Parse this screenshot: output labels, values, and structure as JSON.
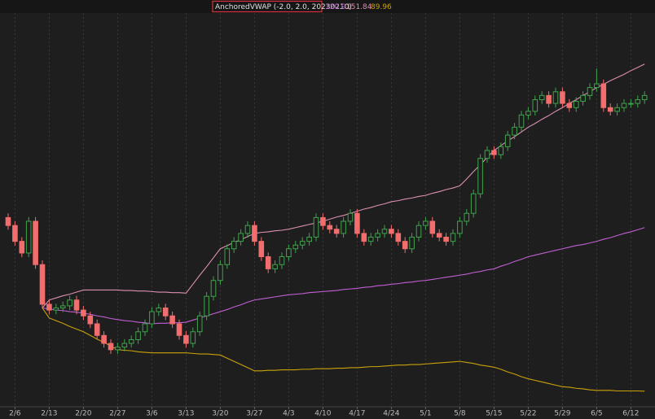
{
  "chart_data": {
    "type": "candlestick",
    "study": "AnchoredVWAP (-2.0, 2.0, 20230210)",
    "categories": [
      null,
      "2/6",
      null,
      null,
      null,
      null,
      "2/13",
      null,
      null,
      null,
      null,
      "2/20",
      null,
      null,
      null,
      null,
      "2/27",
      null,
      null,
      null,
      null,
      "3/6",
      null,
      null,
      null,
      null,
      "3/13",
      null,
      null,
      null,
      null,
      "3/20",
      null,
      null,
      null,
      null,
      "3/27",
      null,
      null,
      null,
      null,
      "4/3",
      null,
      null,
      null,
      null,
      "4/10",
      null,
      null,
      null,
      null,
      "4/17",
      null,
      null,
      null,
      null,
      "4/24",
      null,
      null,
      null,
      null,
      "5/1",
      null,
      null,
      null,
      null,
      "5/8",
      null,
      null,
      null,
      null,
      "5/15",
      null,
      null,
      null,
      null,
      "5/22",
      null,
      null,
      null,
      null,
      "5/29",
      null,
      null,
      null,
      null,
      "6/5",
      null,
      null,
      null,
      null,
      "6/12",
      null,
      null
    ],
    "open": [
      122.8,
      121.3,
      118.3,
      116.1,
      122.1,
      113.9,
      106.4,
      105.3,
      105.7,
      106.1,
      107.2,
      105.3,
      104.2,
      102.7,
      100.5,
      99.0,
      97.8,
      98.3,
      99.0,
      99.7,
      101.2,
      102.7,
      105.0,
      105.7,
      104.2,
      102.7,
      100.5,
      99.0,
      101.2,
      104.2,
      107.9,
      110.9,
      113.9,
      116.9,
      118.3,
      119.8,
      121.3,
      118.3,
      115.4,
      113.1,
      113.9,
      115.4,
      116.9,
      117.6,
      118.3,
      119.1,
      122.8,
      121.3,
      120.6,
      119.8,
      122.1,
      123.6,
      119.8,
      118.3,
      119.1,
      119.8,
      120.6,
      119.8,
      118.3,
      116.9,
      119.1,
      121.3,
      122.1,
      119.8,
      119.1,
      118.3,
      119.8,
      122.1,
      123.6,
      127.3,
      134.0,
      135.5,
      134.7,
      136.2,
      138.4,
      139.9,
      142.2,
      142.9,
      145.1,
      145.9,
      144.4,
      146.6,
      144.4,
      143.6,
      144.8,
      145.9,
      147.4,
      148.1,
      143.6,
      142.9,
      143.6,
      144.4,
      144.4,
      145.1
    ],
    "high": [
      123.6,
      122.1,
      119.1,
      122.9,
      122.9,
      114.7,
      107.2,
      106.5,
      106.9,
      108.0,
      108.0,
      106.1,
      105.0,
      103.5,
      101.3,
      99.8,
      99.1,
      99.8,
      100.5,
      102.0,
      103.5,
      105.8,
      106.5,
      106.5,
      105.0,
      103.5,
      101.3,
      102.0,
      105.0,
      108.7,
      111.7,
      114.7,
      117.7,
      119.1,
      120.6,
      122.1,
      122.1,
      119.1,
      116.2,
      114.7,
      116.2,
      117.7,
      118.4,
      119.1,
      119.9,
      123.6,
      123.6,
      122.1,
      121.4,
      122.9,
      124.4,
      124.4,
      120.6,
      119.9,
      120.6,
      121.4,
      121.4,
      120.6,
      119.1,
      119.9,
      122.1,
      122.9,
      122.9,
      120.6,
      119.9,
      120.6,
      122.9,
      124.4,
      128.1,
      134.8,
      136.3,
      136.3,
      137.0,
      139.2,
      140.7,
      143.0,
      143.7,
      145.9,
      146.7,
      146.7,
      147.4,
      147.4,
      145.2,
      145.6,
      146.7,
      148.2,
      151.0,
      148.9,
      144.4,
      144.4,
      145.2,
      145.2,
      145.9,
      146.7
    ],
    "low": [
      120.5,
      117.5,
      115.3,
      115.3,
      113.1,
      105.6,
      104.5,
      104.5,
      104.9,
      105.3,
      104.5,
      103.4,
      101.9,
      99.7,
      98.2,
      97.0,
      97.0,
      97.5,
      98.2,
      98.9,
      100.4,
      101.9,
      104.2,
      103.4,
      101.9,
      99.7,
      98.2,
      98.2,
      100.4,
      103.4,
      107.1,
      110.1,
      113.1,
      116.1,
      117.5,
      119.0,
      117.5,
      114.6,
      112.3,
      112.3,
      113.1,
      114.6,
      116.1,
      116.8,
      117.5,
      118.3,
      120.5,
      119.8,
      119.0,
      119.0,
      121.3,
      119.0,
      117.5,
      117.5,
      118.3,
      119.0,
      119.0,
      117.5,
      116.1,
      116.1,
      118.3,
      120.5,
      119.0,
      118.3,
      117.5,
      117.5,
      119.0,
      121.3,
      122.8,
      126.5,
      133.2,
      133.9,
      133.9,
      135.4,
      137.6,
      139.1,
      141.4,
      142.1,
      144.3,
      143.6,
      143.6,
      143.6,
      142.8,
      142.8,
      144.0,
      145.1,
      146.6,
      142.8,
      142.1,
      142.1,
      142.8,
      143.6,
      143.6,
      144.3
    ],
    "close": [
      121.3,
      118.3,
      116.1,
      122.1,
      113.9,
      106.4,
      105.3,
      105.7,
      106.1,
      107.2,
      105.3,
      104.2,
      102.7,
      100.5,
      99.0,
      97.8,
      98.3,
      99.0,
      99.7,
      101.2,
      102.7,
      105.0,
      105.7,
      104.2,
      102.7,
      100.5,
      99.0,
      101.2,
      104.2,
      107.9,
      110.9,
      113.9,
      116.9,
      118.3,
      119.8,
      121.3,
      118.3,
      115.4,
      113.1,
      113.9,
      115.4,
      116.9,
      117.6,
      118.3,
      119.1,
      122.8,
      121.3,
      120.6,
      119.8,
      122.1,
      123.6,
      119.8,
      118.3,
      119.1,
      119.8,
      120.6,
      119.8,
      118.3,
      116.9,
      119.1,
      121.3,
      122.1,
      119.8,
      119.1,
      118.3,
      119.8,
      122.1,
      123.6,
      127.3,
      134.0,
      135.5,
      134.7,
      136.2,
      138.4,
      139.9,
      142.2,
      142.9,
      145.1,
      145.9,
      144.4,
      146.6,
      144.4,
      143.6,
      144.8,
      145.9,
      147.4,
      148.1,
      143.6,
      142.9,
      143.6,
      144.4,
      144.4,
      145.1,
      145.9
    ],
    "up_color": "#3fa34d",
    "down_color": "#f26d6d",
    "series": [
      {
        "color": "#c15fd4",
        "values": [
          null,
          null,
          null,
          null,
          null,
          105.7,
          105.5,
          105.3,
          105.2,
          105.0,
          104.9,
          104.7,
          104.5,
          104.2,
          104.0,
          103.7,
          103.5,
          103.3,
          103.2,
          103.0,
          102.9,
          102.7,
          102.8,
          102.8,
          102.9,
          102.9,
          103.0,
          103.4,
          103.8,
          104.2,
          104.6,
          105.0,
          105.4,
          105.9,
          106.3,
          106.8,
          107.2,
          107.4,
          107.6,
          107.8,
          108.0,
          108.2,
          108.3,
          108.4,
          108.6,
          108.7,
          108.8,
          108.9,
          109.0,
          109.2,
          109.3,
          109.4,
          109.6,
          109.7,
          109.9,
          110.0,
          110.2,
          110.3,
          110.5,
          110.6,
          110.8,
          110.9,
          111.1,
          111.3,
          111.5,
          111.7,
          111.9,
          112.1,
          112.4,
          112.6,
          112.9,
          113.1,
          113.6,
          114.0,
          114.5,
          114.9,
          115.4,
          115.7,
          116.0,
          116.3,
          116.6,
          116.9,
          117.2,
          117.5,
          117.7,
          118.0,
          118.3,
          118.7,
          119.0,
          119.4,
          119.8,
          120.1,
          120.5,
          120.9
        ]
      },
      {
        "color": "#dd8fb2",
        "values": [
          null,
          null,
          null,
          null,
          null,
          105.7,
          107.2,
          107.6,
          108.0,
          108.3,
          108.7,
          109.1,
          109.1,
          109.1,
          109.1,
          109.1,
          109.1,
          109.0,
          109.0,
          108.9,
          108.9,
          108.8,
          108.7,
          108.7,
          108.6,
          108.6,
          108.5,
          110.2,
          111.9,
          113.5,
          115.2,
          116.9,
          117.5,
          118.1,
          118.6,
          119.2,
          119.8,
          120.0,
          120.1,
          120.3,
          120.4,
          120.6,
          120.9,
          121.2,
          121.5,
          121.8,
          122.1,
          122.5,
          122.9,
          123.2,
          123.6,
          124.0,
          124.4,
          124.7,
          125.1,
          125.4,
          125.8,
          126.0,
          126.3,
          126.5,
          126.8,
          127.0,
          127.4,
          127.7,
          128.1,
          128.4,
          128.8,
          130.1,
          131.5,
          132.8,
          134.2,
          135.5,
          136.4,
          137.3,
          138.1,
          139.0,
          139.9,
          140.6,
          141.4,
          142.1,
          142.9,
          143.6,
          144.4,
          145.1,
          145.9,
          146.6,
          147.4,
          148.0,
          148.7,
          149.3,
          149.9,
          150.6,
          151.2,
          151.84
        ]
      },
      {
        "color": "#c9a20a",
        "values": [
          null,
          null,
          null,
          null,
          null,
          105.7,
          103.8,
          103.3,
          102.8,
          102.2,
          101.7,
          101.2,
          100.5,
          99.8,
          99.2,
          98.5,
          97.8,
          97.7,
          97.6,
          97.4,
          97.3,
          97.2,
          97.2,
          97.2,
          97.2,
          97.2,
          97.2,
          97.1,
          97.0,
          97.0,
          96.9,
          96.8,
          96.2,
          95.6,
          95.0,
          94.4,
          93.8,
          93.8,
          93.9,
          93.9,
          94.0,
          94.0,
          94.0,
          94.1,
          94.1,
          94.2,
          94.2,
          94.2,
          94.3,
          94.3,
          94.4,
          94.4,
          94.5,
          94.6,
          94.6,
          94.7,
          94.8,
          94.9,
          94.9,
          95.0,
          95.0,
          95.1,
          95.2,
          95.3,
          95.4,
          95.5,
          95.6,
          95.4,
          95.2,
          94.9,
          94.7,
          94.5,
          94.1,
          93.6,
          93.2,
          92.7,
          92.3,
          92.0,
          91.7,
          91.4,
          91.1,
          90.8,
          90.7,
          90.5,
          90.4,
          90.2,
          90.1,
          90.1,
          90.1,
          90.0,
          90.0,
          90.0,
          90.0,
          89.96
        ]
      }
    ],
    "ylim": [
      87,
      161.5
    ],
    "grid": true
  }
}
